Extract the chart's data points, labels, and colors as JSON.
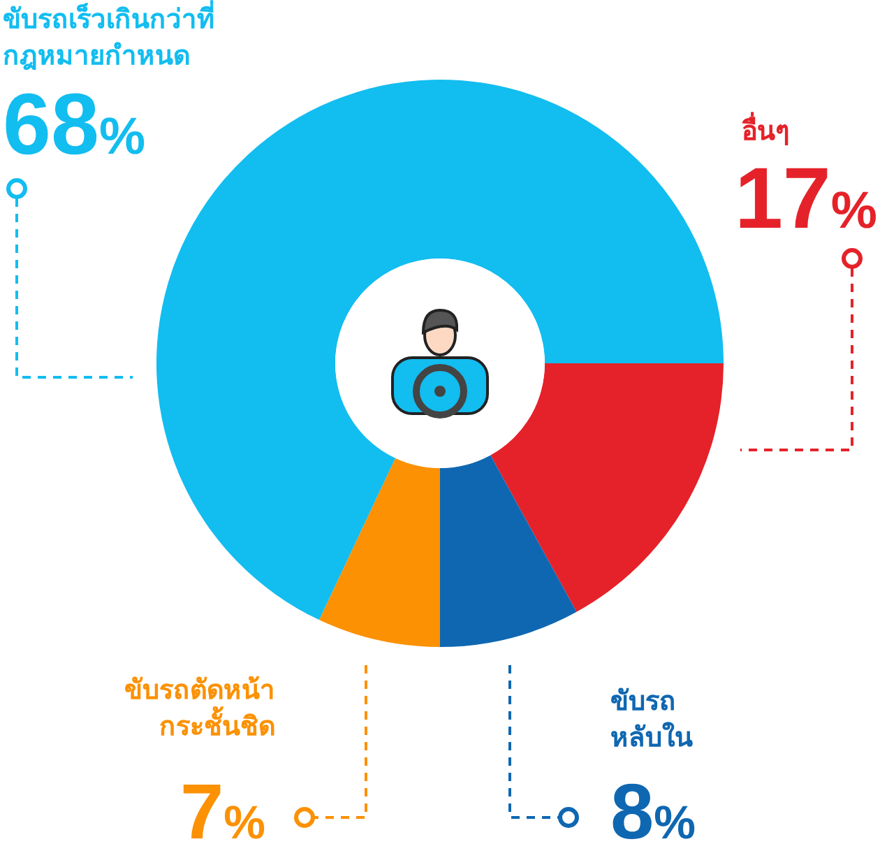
{
  "chart_data": {
    "type": "donut",
    "categories": [
      "ขับรถเร็วเกินกว่าที่\nกฎหมายกำหนด",
      "อื่นๆ",
      "ขับรถ\nหลับใน",
      "ขับรถตัดหน้า\nกระชั้นชิด"
    ],
    "values": [
      68,
      17,
      8,
      7
    ],
    "colors": [
      "#12bdf0",
      "#e52229",
      "#0f67b1",
      "#fb9103"
    ],
    "value_labels": [
      "68%",
      "17%",
      "8%",
      "7%"
    ]
  }
}
